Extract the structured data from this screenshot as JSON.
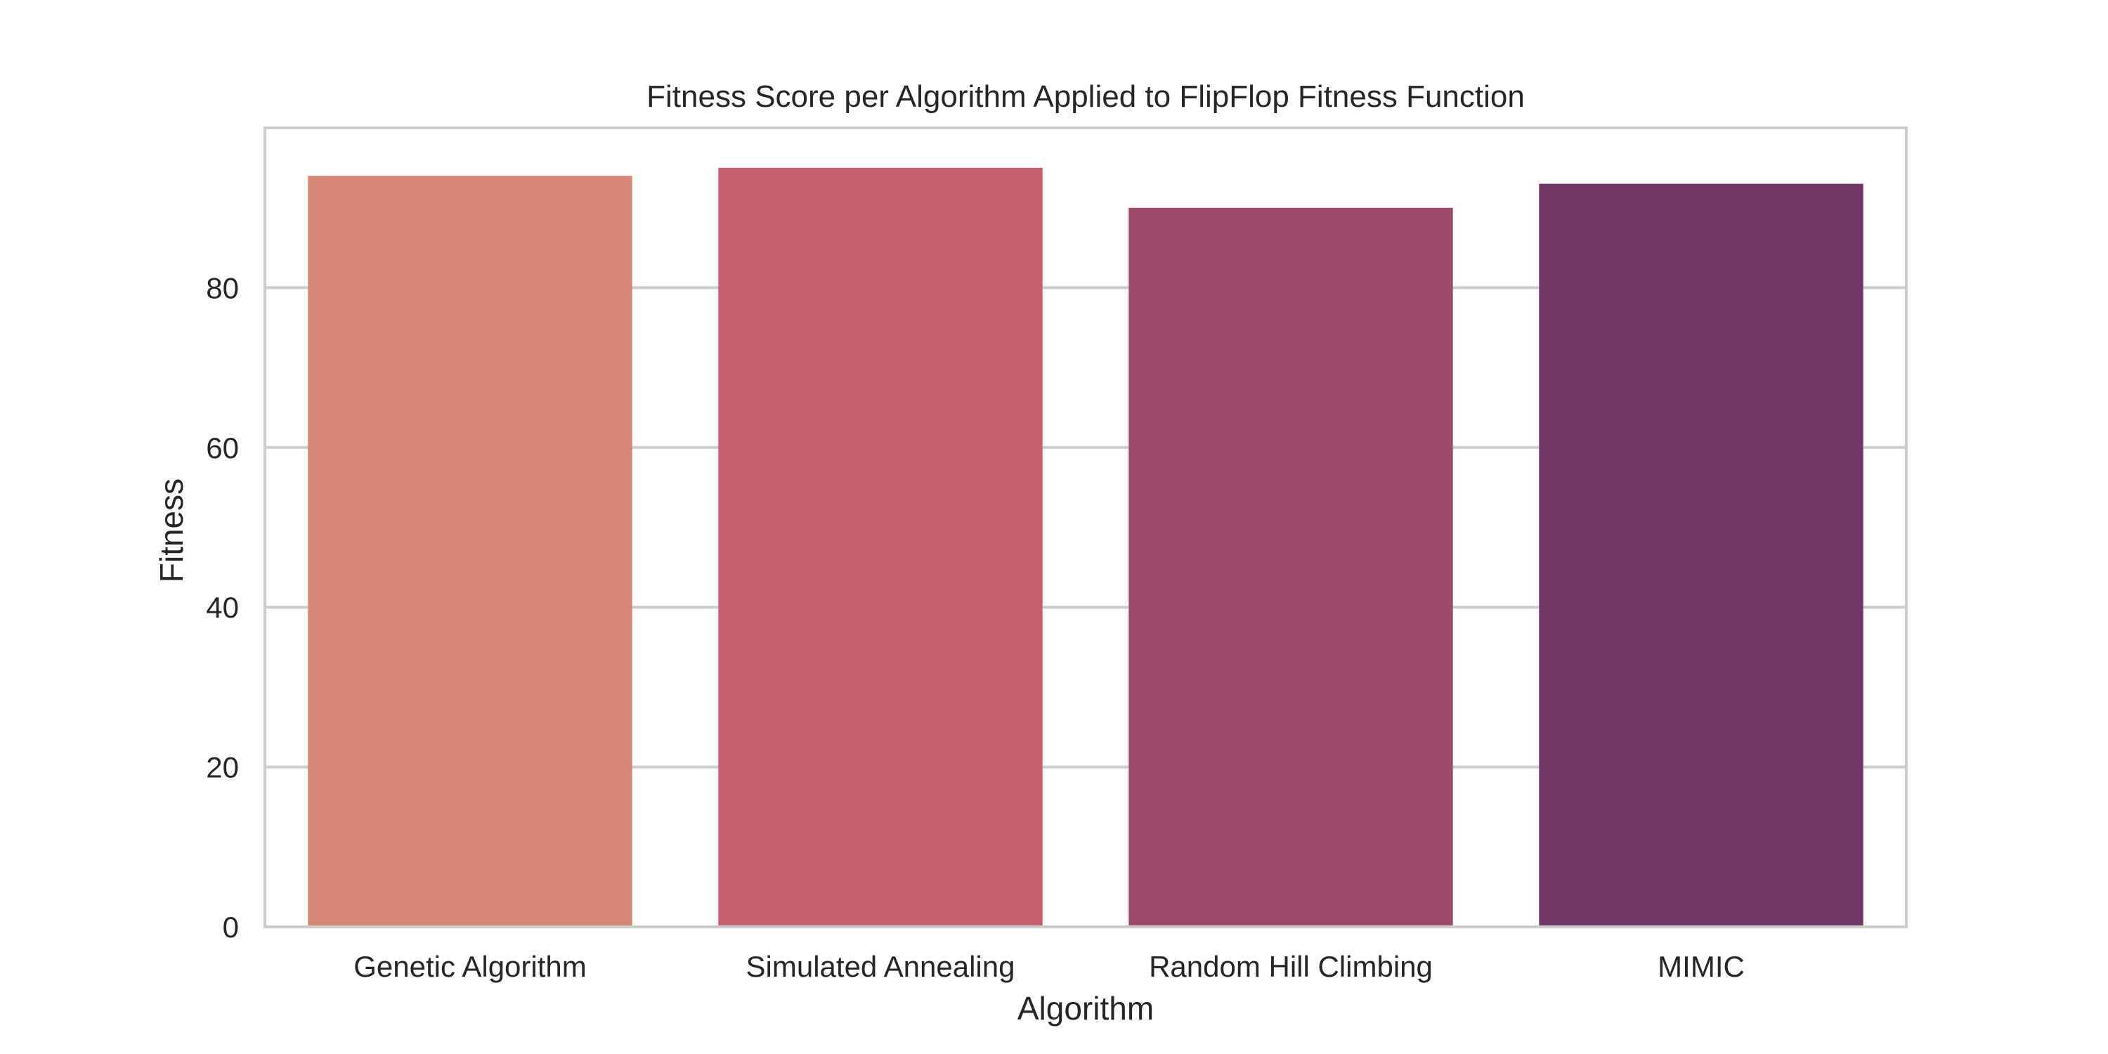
{
  "chart_data": {
    "type": "bar",
    "title": "Fitness Score per Algorithm Applied to FlipFlop Fitness Function",
    "xlabel": "Algorithm",
    "ylabel": "Fitness",
    "categories": [
      "Genetic Algorithm",
      "Simulated Annealing",
      "Random Hill Climbing",
      "MIMIC"
    ],
    "values": [
      94,
      95,
      90,
      93
    ],
    "colors": [
      "#d68676",
      "#c4606d",
      "#9d4a6d",
      "#723766"
    ],
    "ylim": [
      0,
      100
    ],
    "yticks": [
      0,
      20,
      40,
      60,
      80
    ],
    "grid": "horizontal",
    "legend": "none",
    "style": {
      "background": "#ffffff",
      "frame_color": "#cccccc",
      "grid_color": "#cccccc",
      "text_color": "#262626"
    }
  }
}
